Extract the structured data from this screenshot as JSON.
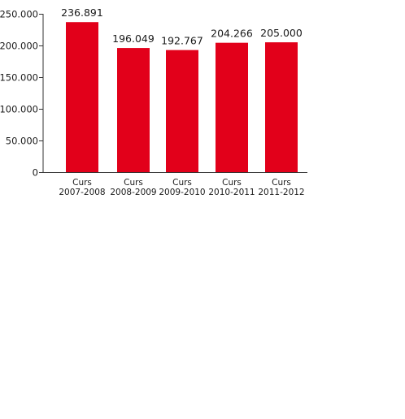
{
  "chart_data": {
    "type": "bar",
    "categories": [
      [
        "Curs",
        "2007-2008"
      ],
      [
        "Curs",
        "2008-2009"
      ],
      [
        "Curs",
        "2009-2010"
      ],
      [
        "Curs",
        "2010-2011"
      ],
      [
        "Curs",
        "2011-2012"
      ]
    ],
    "values": [
      236891,
      196049,
      192767,
      204266,
      205000
    ],
    "value_labels": [
      "236.891",
      "196.049",
      "192.767",
      "204.266",
      "205.000"
    ],
    "y_ticks": [
      0,
      50000,
      100000,
      150000,
      200000,
      250000
    ],
    "y_tick_labels": [
      "0",
      "50.000",
      "100.000",
      "150.000",
      "200.000",
      "250.000"
    ],
    "ylim": [
      0,
      250000
    ],
    "title": "",
    "xlabel": "",
    "ylabel": "",
    "grid": false,
    "legend": "none",
    "colors": {
      "bar": "#e2001a",
      "axis": "#333333",
      "text": "#1a1a1a"
    }
  }
}
